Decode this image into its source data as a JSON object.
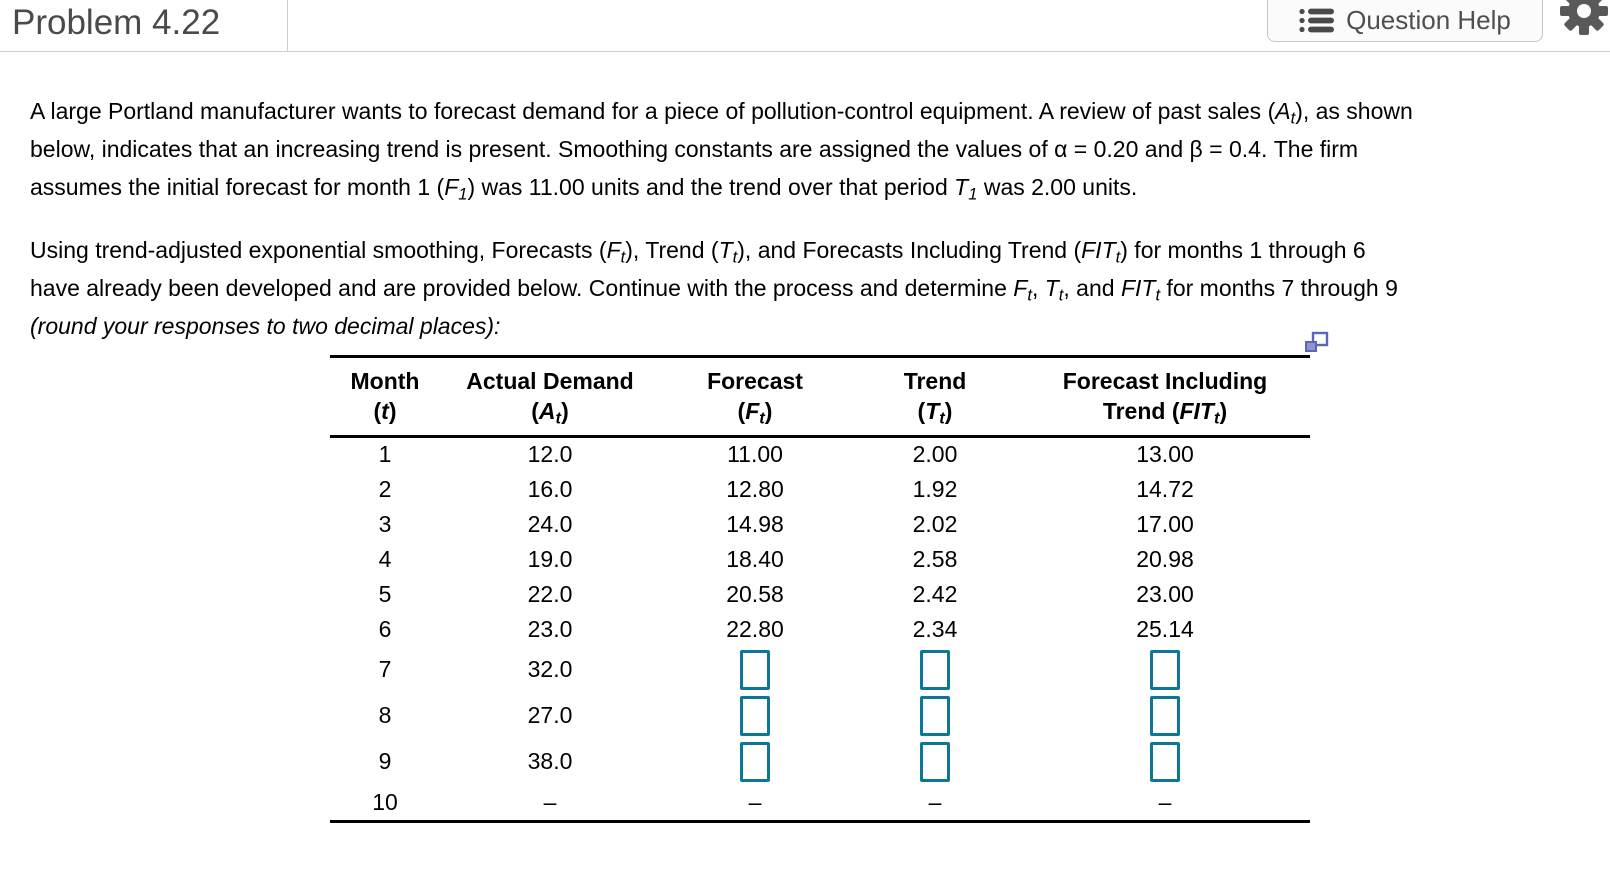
{
  "header": {
    "title": "Problem 4.22",
    "question_help": {
      "label": "Question Help",
      "icon": "list-icon"
    },
    "settings_icon": "gear-icon"
  },
  "colors": {
    "answer_box_border": "#0d7895",
    "popout_icon_blue": "#5b67b5",
    "divider_gray": "#c9cfda",
    "title_gray": "#4a4a4a",
    "table_border": "#000000"
  },
  "problem": {
    "p1": [
      [
        "",
        "A large Portland manufacturer wants to forecast demand for a piece of pollution-control equipment. A review of past sales ("
      ],
      [
        "i",
        "A"
      ],
      [
        "is",
        "t"
      ],
      [
        "",
        "), as shown"
      ],
      [
        "br"
      ],
      [
        "",
        "below, indicates that an increasing trend is present.  Smoothing constants are assigned the values of α = 0.20 and β = 0.4. The firm"
      ],
      [
        "br"
      ],
      [
        "",
        "assumes the initial forecast for month 1 ("
      ],
      [
        "i",
        "F"
      ],
      [
        "is",
        "1"
      ],
      [
        "",
        ") was 11.00 units and the trend over that period "
      ],
      [
        "i",
        "T"
      ],
      [
        "is",
        "1"
      ],
      [
        "",
        " was 2.00 units."
      ]
    ],
    "p2": [
      [
        "",
        "Using trend-adjusted exponential smoothing, Forecasts ("
      ],
      [
        "i",
        "F"
      ],
      [
        "is",
        "t"
      ],
      [
        "",
        "), Trend ("
      ],
      [
        "i",
        "T"
      ],
      [
        "is",
        "t"
      ],
      [
        "",
        "), and Forecasts Including Trend ("
      ],
      [
        "i",
        "FIT"
      ],
      [
        "is",
        "t"
      ],
      [
        "",
        ") for months 1 through 6"
      ],
      [
        "br"
      ],
      [
        "",
        "have already been developed and are provided below.  Continue with the process and determine "
      ],
      [
        "i",
        "F"
      ],
      [
        "is",
        "t"
      ],
      [
        "",
        ", "
      ],
      [
        "i",
        "T"
      ],
      [
        "is",
        "t"
      ],
      [
        "",
        ", and "
      ],
      [
        "i",
        "FIT"
      ],
      [
        "is",
        "t"
      ],
      [
        "",
        " for months 7 through 9"
      ],
      [
        "br"
      ],
      [
        "i",
        "(round your responses to two decimal places):"
      ]
    ]
  },
  "table": {
    "popout_icon": "copy-table-icon",
    "col_headers": [
      {
        "line1": [
          [
            "",
            "Month"
          ]
        ],
        "line2": [
          [
            "",
            "("
          ],
          [
            "i",
            "t"
          ],
          [
            "",
            ")"
          ]
        ]
      },
      {
        "line1": [
          [
            "",
            "Actual Demand"
          ]
        ],
        "line2": [
          [
            "",
            "("
          ],
          [
            "i",
            "A"
          ],
          [
            "is",
            "t"
          ],
          [
            "",
            ")"
          ]
        ]
      },
      {
        "line1": [
          [
            "",
            "Forecast"
          ]
        ],
        "line2": [
          [
            "",
            "("
          ],
          [
            "i",
            "F"
          ],
          [
            "is",
            "t"
          ],
          [
            "",
            ")"
          ]
        ]
      },
      {
        "line1": [
          [
            "",
            "Trend"
          ]
        ],
        "line2": [
          [
            "",
            "("
          ],
          [
            "i",
            "T"
          ],
          [
            "is",
            "t"
          ],
          [
            "",
            ")"
          ]
        ]
      },
      {
        "line1": [
          [
            "",
            "Forecast Including"
          ]
        ],
        "line2": [
          [
            "",
            "Trend ("
          ],
          [
            "i",
            "FIT"
          ],
          [
            "is",
            "t"
          ],
          [
            "",
            ")"
          ]
        ]
      }
    ],
    "rows": [
      {
        "month": "1",
        "demand": "12.0",
        "forecast": "11.00",
        "trend": "2.00",
        "fit": "13.00"
      },
      {
        "month": "2",
        "demand": "16.0",
        "forecast": "12.80",
        "trend": "1.92",
        "fit": "14.72"
      },
      {
        "month": "3",
        "demand": "24.0",
        "forecast": "14.98",
        "trend": "2.02",
        "fit": "17.00"
      },
      {
        "month": "4",
        "demand": "19.0",
        "forecast": "18.40",
        "trend": "2.58",
        "fit": "20.98"
      },
      {
        "month": "5",
        "demand": "22.0",
        "forecast": "20.58",
        "trend": "2.42",
        "fit": "23.00"
      },
      {
        "month": "6",
        "demand": "23.0",
        "forecast": "22.80",
        "trend": "2.34",
        "fit": "25.14"
      },
      {
        "month": "7",
        "demand": "32.0",
        "forecast": null,
        "trend": null,
        "fit": null
      },
      {
        "month": "8",
        "demand": "27.0",
        "forecast": null,
        "trend": null,
        "fit": null
      },
      {
        "month": "9",
        "demand": "38.0",
        "forecast": null,
        "trend": null,
        "fit": null
      },
      {
        "month": "10",
        "demand": "–",
        "forecast": "–",
        "trend": "–",
        "fit": "–"
      }
    ]
  }
}
